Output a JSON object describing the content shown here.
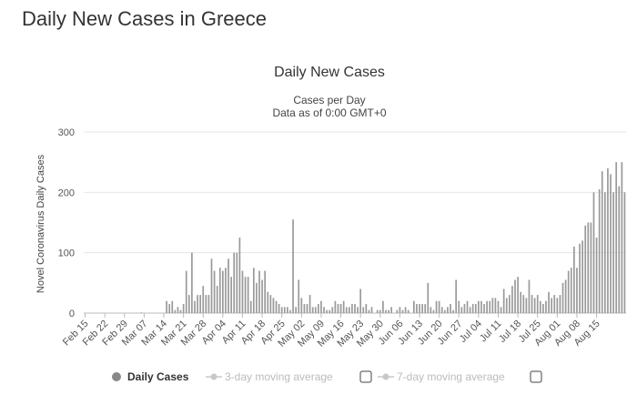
{
  "page": {
    "title": "Daily New Cases in Greece"
  },
  "legend": {
    "daily": "Daily Cases",
    "ma3": "3-day moving average",
    "ma7": "7-day moving average"
  },
  "colors": {
    "bar": "#9a9a9a",
    "grid": "#e6e6e6",
    "inactive": "#c8c8c8"
  },
  "chart_data": {
    "type": "bar",
    "title": "Daily New Cases",
    "subtitle": "Cases per Day",
    "subtitle2": "Data as of 0:00 GMT+0",
    "ylabel": "Novel Coronavirus Daily Cases",
    "xlabel": "",
    "ylim": [
      0,
      300
    ],
    "yticks": [
      0,
      100,
      200,
      300
    ],
    "x_tick_labels": [
      "Feb 15",
      "Feb 22",
      "Feb 29",
      "Mar 07",
      "Mar 14",
      "Mar 21",
      "Mar 28",
      "Apr 04",
      "Apr 11",
      "Apr 18",
      "Apr 25",
      "May 02",
      "May 09",
      "May 16",
      "May 23",
      "May 30",
      "Jun 06",
      "Jun 13",
      "Jun 20",
      "Jun 27",
      "Jul 04",
      "Jul 11",
      "Jul 18",
      "Jul 25",
      "Aug 01",
      "Aug 08",
      "Aug 15"
    ],
    "start_label": "Feb 15",
    "values": [
      0,
      0,
      0,
      0,
      0,
      0,
      0,
      0,
      0,
      0,
      0,
      0,
      0,
      0,
      0,
      0,
      0,
      0,
      0,
      0,
      1,
      0,
      0,
      0,
      0,
      0,
      0,
      0,
      0,
      20,
      15,
      20,
      5,
      10,
      5,
      15,
      70,
      30,
      100,
      20,
      30,
      30,
      45,
      30,
      30,
      90,
      70,
      45,
      75,
      70,
      75,
      90,
      60,
      100,
      100,
      125,
      70,
      60,
      60,
      20,
      75,
      50,
      70,
      55,
      70,
      35,
      30,
      25,
      20,
      15,
      10,
      10,
      10,
      5,
      155,
      10,
      55,
      25,
      15,
      15,
      30,
      10,
      10,
      15,
      20,
      10,
      5,
      5,
      10,
      20,
      15,
      15,
      20,
      10,
      10,
      15,
      15,
      10,
      40,
      10,
      15,
      5,
      10,
      0,
      5,
      5,
      20,
      5,
      5,
      10,
      0,
      5,
      10,
      5,
      10,
      5,
      0,
      20,
      15,
      15,
      15,
      15,
      50,
      10,
      5,
      20,
      20,
      10,
      5,
      10,
      15,
      5,
      55,
      20,
      10,
      15,
      20,
      10,
      15,
      15,
      20,
      20,
      15,
      20,
      20,
      25,
      25,
      20,
      10,
      40,
      25,
      30,
      45,
      55,
      60,
      35,
      30,
      25,
      55,
      30,
      25,
      30,
      20,
      15,
      20,
      35,
      25,
      30,
      25,
      30,
      50,
      55,
      70,
      75,
      110,
      75,
      115,
      120,
      145,
      150,
      150,
      200,
      125,
      205,
      235,
      200,
      240,
      230,
      200,
      250,
      210,
      250,
      200
    ]
  }
}
